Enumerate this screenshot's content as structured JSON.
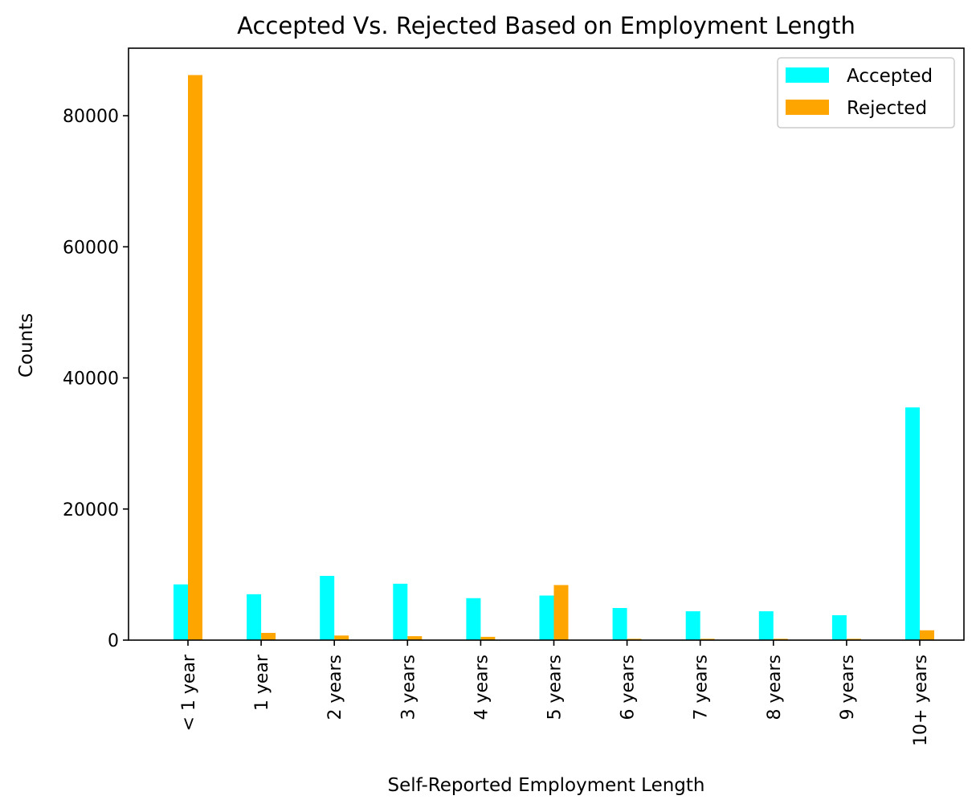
{
  "chart_data": {
    "type": "bar",
    "title": "Accepted Vs. Rejected Based on Employment Length",
    "xlabel": "Self-Reported Employment Length",
    "ylabel": "Counts",
    "categories": [
      "< 1 year",
      "1 year",
      "2 years",
      "3 years",
      "4 years",
      "5 years",
      "6 years",
      "7 years",
      "8 years",
      "9 years",
      "10+ years"
    ],
    "series": [
      {
        "name": "Accepted",
        "color": "#00ffff",
        "values": [
          8500,
          7000,
          9800,
          8600,
          6400,
          6800,
          4900,
          4400,
          4400,
          3800,
          35500
        ]
      },
      {
        "name": "Rejected",
        "color": "#ffa500",
        "values": [
          86200,
          1100,
          700,
          600,
          500,
          8400,
          200,
          200,
          200,
          200,
          1500
        ]
      }
    ],
    "ylim": [
      0,
      90300
    ],
    "yticks": [
      0,
      20000,
      40000,
      60000,
      80000
    ],
    "ytick_labels": [
      "0",
      "20000",
      "40000",
      "60000",
      "80000"
    ],
    "legend_position": "top-right",
    "grid": false
  }
}
